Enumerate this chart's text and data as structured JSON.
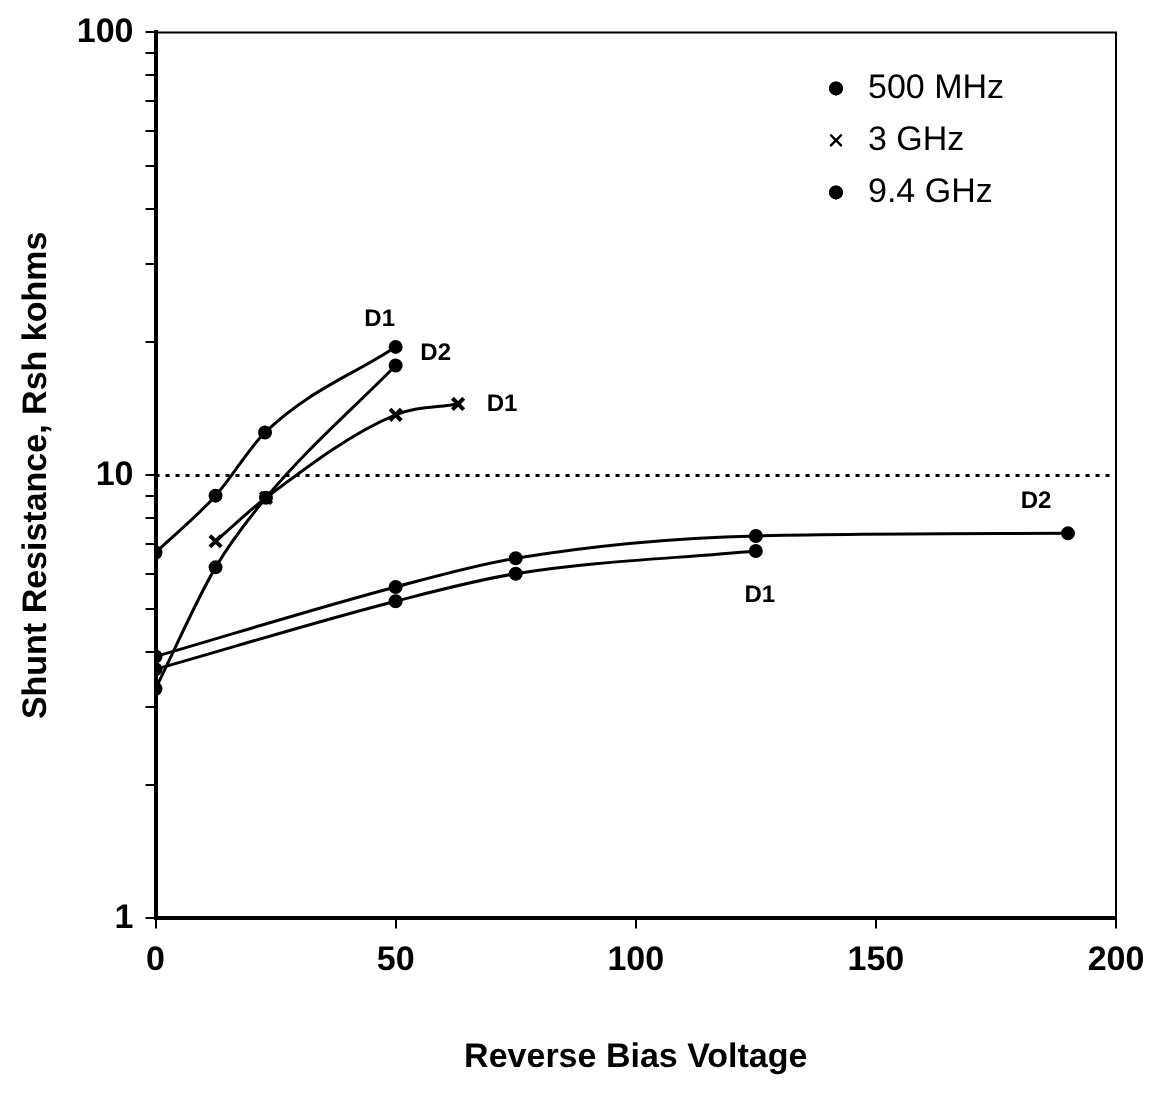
{
  "chart_data": {
    "type": "line",
    "xlabel": "Reverse Bias Voltage",
    "ylabel": "Shunt Resistance, Rsh kohms",
    "xlim": [
      0,
      200
    ],
    "xticks": [
      0,
      50,
      100,
      150,
      200
    ],
    "ylim": [
      1,
      100
    ],
    "yticks": [
      1,
      {
        "value": 2,
        "label": null
      },
      {
        "value": 3,
        "label": null
      },
      {
        "value": 4,
        "label": null
      },
      {
        "value": 5,
        "label": null
      },
      {
        "value": 6,
        "label": null
      },
      {
        "value": 7,
        "label": null
      },
      {
        "value": 8,
        "label": null
      },
      {
        "value": 9,
        "label": null
      },
      10,
      {
        "value": 20,
        "label": null
      },
      {
        "value": 30,
        "label": null
      },
      {
        "value": 40,
        "label": null
      },
      {
        "value": 50,
        "label": null
      },
      {
        "value": 60,
        "label": null
      },
      {
        "value": 70,
        "label": null
      },
      {
        "value": 80,
        "label": null
      },
      {
        "value": 90,
        "label": null
      },
      100
    ],
    "log": "y",
    "legend": "top right",
    "line_style": "solid",
    "series": [
      {
        "name": "500 MHz",
        "color": "#000000",
        "marker": "circle",
        "x": [
          0,
          12.5,
          22.8,
          50
        ],
        "values": [
          6.7,
          9.0,
          12.5,
          19.5
        ]
      },
      {
        "color": "#000000",
        "marker": "circle",
        "x": [
          0,
          12.5,
          23,
          50
        ],
        "values": [
          3.3,
          6.2,
          8.9,
          17.7
        ]
      },
      {
        "name": "3 GHz",
        "color": "#000000",
        "marker": "cross",
        "x": [
          12.5,
          23,
          50,
          63
        ],
        "values": [
          7.1,
          8.9,
          13.7,
          14.5
        ]
      },
      {
        "name": "9.4 GHz",
        "color": "#000000",
        "marker": "circle",
        "x": [
          0,
          50,
          75,
          125,
          190
        ],
        "values": [
          3.9,
          5.6,
          6.5,
          7.3,
          7.4
        ]
      },
      {
        "color": "#000000",
        "marker": "circle",
        "x": [
          0,
          50,
          75,
          125
        ],
        "values": [
          3.65,
          5.2,
          6.0,
          6.75
        ]
      }
    ],
    "ref_lines": [
      {
        "axis": "y",
        "value": 10,
        "line_style": "dotted"
      }
    ],
    "annotations": [
      {
        "text": "D1",
        "x": 50,
        "y": 19.5
      },
      {
        "text": "D2",
        "x": 50,
        "y": 17.7
      },
      {
        "text": "D1",
        "x": 63,
        "y": 14.5
      },
      {
        "text": "D2",
        "x": 190,
        "y": 7.4
      },
      {
        "text": "D1",
        "x": 125,
        "y": 6.75
      }
    ]
  }
}
